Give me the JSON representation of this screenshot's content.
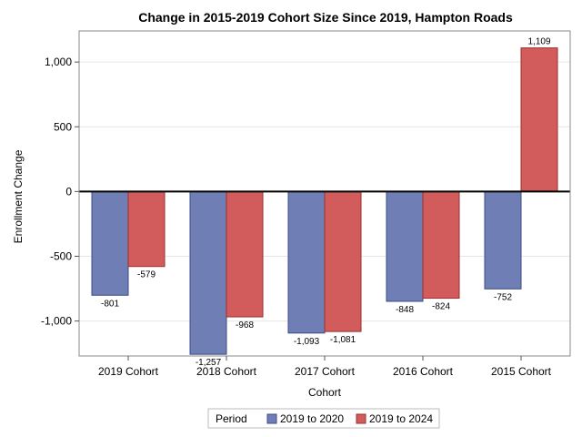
{
  "chart_data": {
    "type": "bar",
    "title": "Change in 2015-2019 Cohort Size Since 2019, Hampton Roads",
    "xlabel": "Cohort",
    "ylabel": "Enrollment Change",
    "categories": [
      "2019 Cohort",
      "2018 Cohort",
      "2017 Cohort",
      "2016 Cohort",
      "2015 Cohort"
    ],
    "series": [
      {
        "name": "2019 to 2020",
        "color": "#6f7fb5",
        "stroke": "#3d4b85",
        "values": [
          -801,
          -1257,
          -1093,
          -848,
          -752
        ],
        "labels": [
          "-801",
          "-1,257",
          "-1,093",
          "-848",
          "-752"
        ]
      },
      {
        "name": "2019 to 2024",
        "color": "#d25b5b",
        "stroke": "#9a2f2f",
        "values": [
          -579,
          -968,
          -1081,
          -824,
          1109
        ],
        "labels": [
          "-579",
          "-968",
          "-1,081",
          "-824",
          "1,109"
        ]
      }
    ],
    "ylim": [
      -1270,
      1240
    ],
    "yticks": [
      -1000,
      -500,
      0,
      500,
      1000
    ],
    "ytick_labels": [
      "-1,000",
      "-500",
      "0",
      "500",
      "1,000"
    ],
    "grid": true,
    "legend": {
      "title": "Period",
      "placement": "bottom-center"
    }
  }
}
